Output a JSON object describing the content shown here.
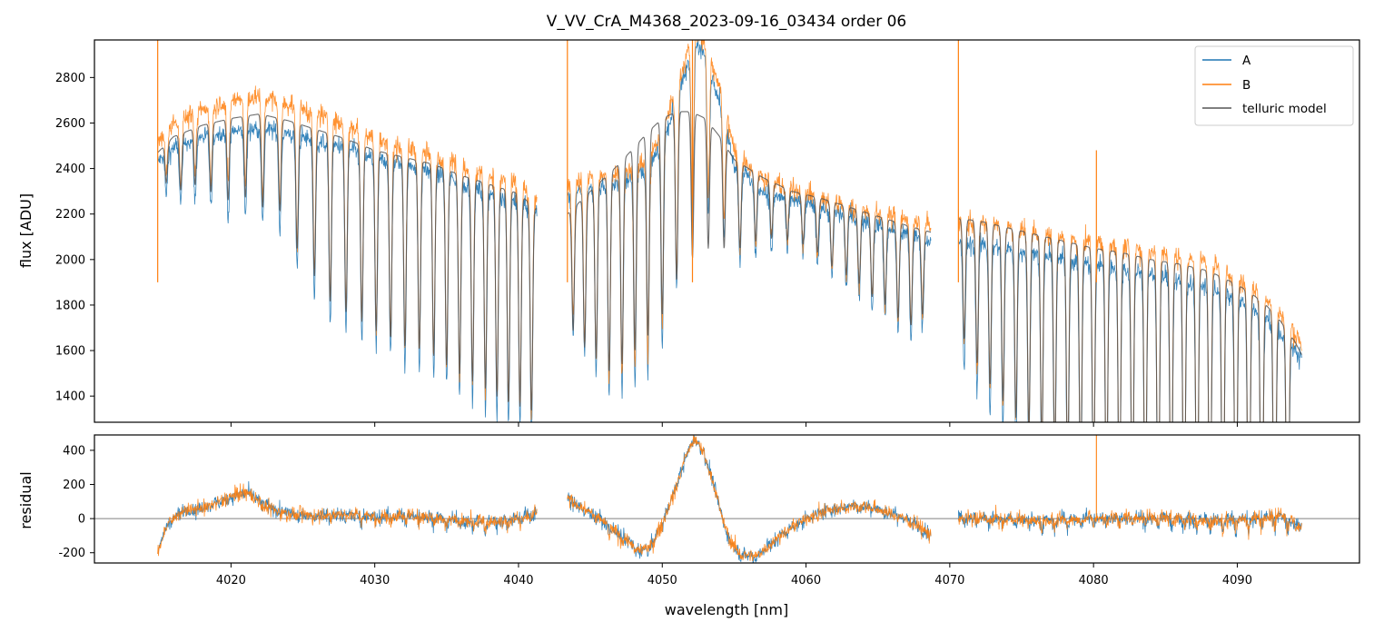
{
  "figure": {
    "title": "V_VV_CrA_M4368_2023-09-16_03434  order 06"
  },
  "chart_data": [
    {
      "type": "line",
      "panel": "flux",
      "ylabel": "flux [ADU]",
      "xlabel": "",
      "xlim": [
        4010.5,
        4098.5
      ],
      "ylim": [
        1285,
        2965
      ],
      "xticks": [
        4020,
        4030,
        4040,
        4050,
        4060,
        4070,
        4080,
        4090
      ],
      "yticks": [
        1400,
        1600,
        1800,
        2000,
        2200,
        2400,
        2600,
        2800
      ],
      "legend_position": "top-right",
      "segments": [
        [
          4014.9,
          4041.3
        ],
        [
          4043.4,
          4068.7
        ],
        [
          4070.6,
          4094.5
        ]
      ],
      "series": [
        {
          "name": "A",
          "color": "#1f77b4"
        },
        {
          "name": "B",
          "color": "#ff7f0e"
        },
        {
          "name": "telluric model",
          "color": "#555555"
        }
      ],
      "continuum_A": {
        "x": [
          4014.9,
          4016,
          4018,
          4020,
          4022,
          4024,
          4026,
          4028,
          4030,
          4032,
          4034,
          4036,
          4038,
          4040,
          4041.3,
          4043.4,
          4045,
          4047,
          4049,
          4050,
          4051,
          4051.8,
          4052.3,
          4053,
          4054,
          4055,
          4057,
          4059,
          4061,
          4063,
          4065,
          4067,
          4068.7,
          4070.6,
          4072,
          4074,
          4076,
          4078,
          4080,
          4082,
          4084,
          4086,
          4088,
          4090,
          4091,
          4092,
          4093,
          4094,
          4094.5
        ],
        "y": [
          2430,
          2490,
          2540,
          2560,
          2580,
          2550,
          2520,
          2490,
          2440,
          2420,
          2390,
          2340,
          2290,
          2260,
          2200,
          2280,
          2310,
          2340,
          2400,
          2500,
          2700,
          2860,
          2950,
          2900,
          2700,
          2420,
          2300,
          2260,
          2230,
          2190,
          2150,
          2110,
          2080,
          2070,
          2070,
          2050,
          2030,
          2000,
          1980,
          1960,
          1940,
          1910,
          1880,
          1820,
          1780,
          1740,
          1680,
          1600,
          1560
        ]
      },
      "continuum_B": {
        "x": [
          4014.9,
          4016,
          4018,
          4020,
          4022,
          4024,
          4026,
          4028,
          4030,
          4032,
          4034,
          4036,
          4038,
          4040,
          4041.3,
          4043.4,
          4045,
          4047,
          4049,
          4050,
          4051,
          4051.8,
          4052.3,
          4053,
          4054,
          4055,
          4057,
          4059,
          4061,
          4063,
          4065,
          4067,
          4068.7,
          4070.6,
          4072,
          4074,
          4076,
          4078,
          4080,
          4082,
          4084,
          4086,
          4088,
          4090,
          4091,
          4092,
          4093,
          4094,
          4094.5
        ],
        "y": [
          2510,
          2600,
          2660,
          2700,
          2720,
          2680,
          2640,
          2590,
          2540,
          2490,
          2460,
          2410,
          2370,
          2330,
          2250,
          2330,
          2360,
          2380,
          2440,
          2560,
          2760,
          2920,
          3000,
          2960,
          2760,
          2480,
          2360,
          2310,
          2270,
          2230,
          2200,
          2180,
          2150,
          2170,
          2160,
          2140,
          2120,
          2090,
          2080,
          2060,
          2040,
          2020,
          1990,
          1920,
          1880,
          1830,
          1760,
          1680,
          1620
        ]
      },
      "continuum_model": {
        "x": [
          4014.9,
          4016,
          4018,
          4020,
          4022,
          4024,
          4026,
          4028,
          4030,
          4032,
          4034,
          4036,
          4038,
          4040,
          4041.3,
          4043.4,
          4045,
          4047,
          4049,
          4050,
          4051,
          4052,
          4053,
          4054,
          4055,
          4057,
          4059,
          4061,
          4063,
          4065,
          4067,
          4068.7,
          4070.6,
          4072,
          4074,
          4076,
          4078,
          4080,
          4082,
          4084,
          4086,
          4088,
          4090,
          4091,
          4092,
          4093,
          4094,
          4094.5
        ],
        "y": [
          2470,
          2540,
          2590,
          2620,
          2640,
          2610,
          2570,
          2530,
          2480,
          2450,
          2420,
          2370,
          2330,
          2290,
          2220,
          2200,
          2300,
          2420,
          2560,
          2620,
          2650,
          2650,
          2620,
          2540,
          2440,
          2360,
          2300,
          2270,
          2230,
          2190,
          2150,
          2120,
          2180,
          2170,
          2140,
          2110,
          2080,
          2050,
          2030,
          2000,
          1980,
          1950,
          1890,
          1850,
          1800,
          1730,
          1640,
          1580
        ]
      },
      "telluric_lines": [
        {
          "x": 4015.5,
          "depth": 0.07
        },
        {
          "x": 4016.5,
          "depth": 0.1
        },
        {
          "x": 4017.5,
          "depth": 0.1
        },
        {
          "x": 4018.6,
          "depth": 0.12
        },
        {
          "x": 4019.8,
          "depth": 0.14
        },
        {
          "x": 4021.0,
          "depth": 0.14
        },
        {
          "x": 4022.2,
          "depth": 0.16
        },
        {
          "x": 4023.4,
          "depth": 0.16
        },
        {
          "x": 4024.6,
          "depth": 0.22
        },
        {
          "x": 4025.8,
          "depth": 0.26
        },
        {
          "x": 4026.9,
          "depth": 0.3
        },
        {
          "x": 4028.0,
          "depth": 0.31
        },
        {
          "x": 4029.1,
          "depth": 0.32
        },
        {
          "x": 4030.1,
          "depth": 0.33
        },
        {
          "x": 4031.1,
          "depth": 0.34
        },
        {
          "x": 4032.1,
          "depth": 0.35
        },
        {
          "x": 4033.1,
          "depth": 0.35
        },
        {
          "x": 4034.1,
          "depth": 0.36
        },
        {
          "x": 4035.0,
          "depth": 0.37
        },
        {
          "x": 4035.9,
          "depth": 0.38
        },
        {
          "x": 4036.8,
          "depth": 0.39
        },
        {
          "x": 4037.7,
          "depth": 0.4
        },
        {
          "x": 4038.5,
          "depth": 0.41
        },
        {
          "x": 4039.3,
          "depth": 0.42
        },
        {
          "x": 4040.1,
          "depth": 0.42
        },
        {
          "x": 4040.9,
          "depth": 0.42
        },
        {
          "x": 4043.8,
          "depth": 0.25
        },
        {
          "x": 4044.6,
          "depth": 0.3
        },
        {
          "x": 4045.4,
          "depth": 0.34
        },
        {
          "x": 4046.3,
          "depth": 0.38
        },
        {
          "x": 4047.2,
          "depth": 0.38
        },
        {
          "x": 4048.1,
          "depth": 0.37
        },
        {
          "x": 4049.0,
          "depth": 0.36
        },
        {
          "x": 4050.0,
          "depth": 0.34
        },
        {
          "x": 4051.0,
          "depth": 0.29
        },
        {
          "x": 4052.1,
          "depth": 0.25
        },
        {
          "x": 4053.2,
          "depth": 0.22
        },
        {
          "x": 4054.3,
          "depth": 0.19
        },
        {
          "x": 4055.4,
          "depth": 0.16
        },
        {
          "x": 4056.5,
          "depth": 0.13
        },
        {
          "x": 4057.6,
          "depth": 0.11
        },
        {
          "x": 4058.7,
          "depth": 0.1
        },
        {
          "x": 4059.8,
          "depth": 0.1
        },
        {
          "x": 4060.8,
          "depth": 0.11
        },
        {
          "x": 4061.8,
          "depth": 0.13
        },
        {
          "x": 4062.8,
          "depth": 0.14
        },
        {
          "x": 4063.7,
          "depth": 0.15
        },
        {
          "x": 4064.6,
          "depth": 0.17
        },
        {
          "x": 4065.5,
          "depth": 0.18
        },
        {
          "x": 4066.4,
          "depth": 0.2
        },
        {
          "x": 4067.3,
          "depth": 0.21
        },
        {
          "x": 4068.1,
          "depth": 0.18
        },
        {
          "x": 4071.0,
          "depth": 0.25
        },
        {
          "x": 4071.9,
          "depth": 0.3
        },
        {
          "x": 4072.8,
          "depth": 0.34
        },
        {
          "x": 4073.7,
          "depth": 0.37
        },
        {
          "x": 4074.6,
          "depth": 0.4
        },
        {
          "x": 4075.5,
          "depth": 0.42
        },
        {
          "x": 4076.4,
          "depth": 0.45
        },
        {
          "x": 4077.3,
          "depth": 0.47
        },
        {
          "x": 4078.2,
          "depth": 0.5
        },
        {
          "x": 4079.1,
          "depth": 0.52
        },
        {
          "x": 4080.0,
          "depth": 0.54
        },
        {
          "x": 4080.9,
          "depth": 0.56
        },
        {
          "x": 4081.8,
          "depth": 0.58
        },
        {
          "x": 4082.7,
          "depth": 0.6
        },
        {
          "x": 4083.6,
          "depth": 0.62
        },
        {
          "x": 4084.5,
          "depth": 0.64
        },
        {
          "x": 4085.4,
          "depth": 0.65
        },
        {
          "x": 4086.3,
          "depth": 0.66
        },
        {
          "x": 4087.2,
          "depth": 0.68
        },
        {
          "x": 4088.1,
          "depth": 0.7
        },
        {
          "x": 4089.0,
          "depth": 0.72
        },
        {
          "x": 4089.9,
          "depth": 0.74
        },
        {
          "x": 4090.8,
          "depth": 0.76
        },
        {
          "x": 4091.7,
          "depth": 0.78
        },
        {
          "x": 4092.6,
          "depth": 0.8
        },
        {
          "x": 4093.5,
          "depth": 0.8
        }
      ],
      "spikes": [
        {
          "x": 4014.9,
          "y": 2965
        },
        {
          "x": 4043.4,
          "y": 2965
        },
        {
          "x": 4052.1,
          "y": 2965
        },
        {
          "x": 4070.6,
          "y": 2965
        },
        {
          "x": 4080.2,
          "y": 2480
        }
      ]
    },
    {
      "type": "line",
      "panel": "residual",
      "ylabel": "residual",
      "xlabel": "wavelength [nm]",
      "xlim": [
        4010.5,
        4098.5
      ],
      "ylim": [
        -260,
        490
      ],
      "xticks": [
        4020,
        4030,
        4040,
        4050,
        4060,
        4070,
        4080,
        4090
      ],
      "yticks": [
        -200,
        0,
        200,
        400
      ],
      "zero_line": 0,
      "residual_trend": {
        "x": [
          4014.9,
          4015.5,
          4016.5,
          4018,
          4019.5,
          4021,
          4022.5,
          4024,
          4026,
          4028,
          4030,
          4032,
          4034,
          4036,
          4038,
          4040,
          4041.3,
          4043.4,
          4044.5,
          4045.5,
          4046.5,
          4047.5,
          4048.5,
          4049.3,
          4050,
          4050.8,
          4051.5,
          4052.2,
          4052.8,
          4053.4,
          4054,
          4054.7,
          4055.5,
          4056.5,
          4057.5,
          4058.5,
          4060,
          4061.5,
          4063,
          4064.5,
          4066,
          4067.5,
          4068.7,
          4070.6,
          4073,
          4076,
          4079,
          4082,
          4085,
          4088,
          4091,
          4093,
          4094.5
        ],
        "y": [
          -200,
          -40,
          40,
          60,
          110,
          160,
          70,
          30,
          20,
          30,
          10,
          20,
          10,
          -10,
          -20,
          10,
          40,
          120,
          60,
          10,
          -60,
          -120,
          -190,
          -150,
          -20,
          150,
          330,
          470,
          400,
          260,
          60,
          -130,
          -210,
          -220,
          -150,
          -80,
          0,
          50,
          80,
          70,
          30,
          -20,
          -100,
          10,
          0,
          -10,
          0,
          10,
          10,
          -10,
          0,
          30,
          -60
        ]
      },
      "spikes": [
        {
          "x": 4080.2,
          "y": 490
        }
      ]
    }
  ]
}
